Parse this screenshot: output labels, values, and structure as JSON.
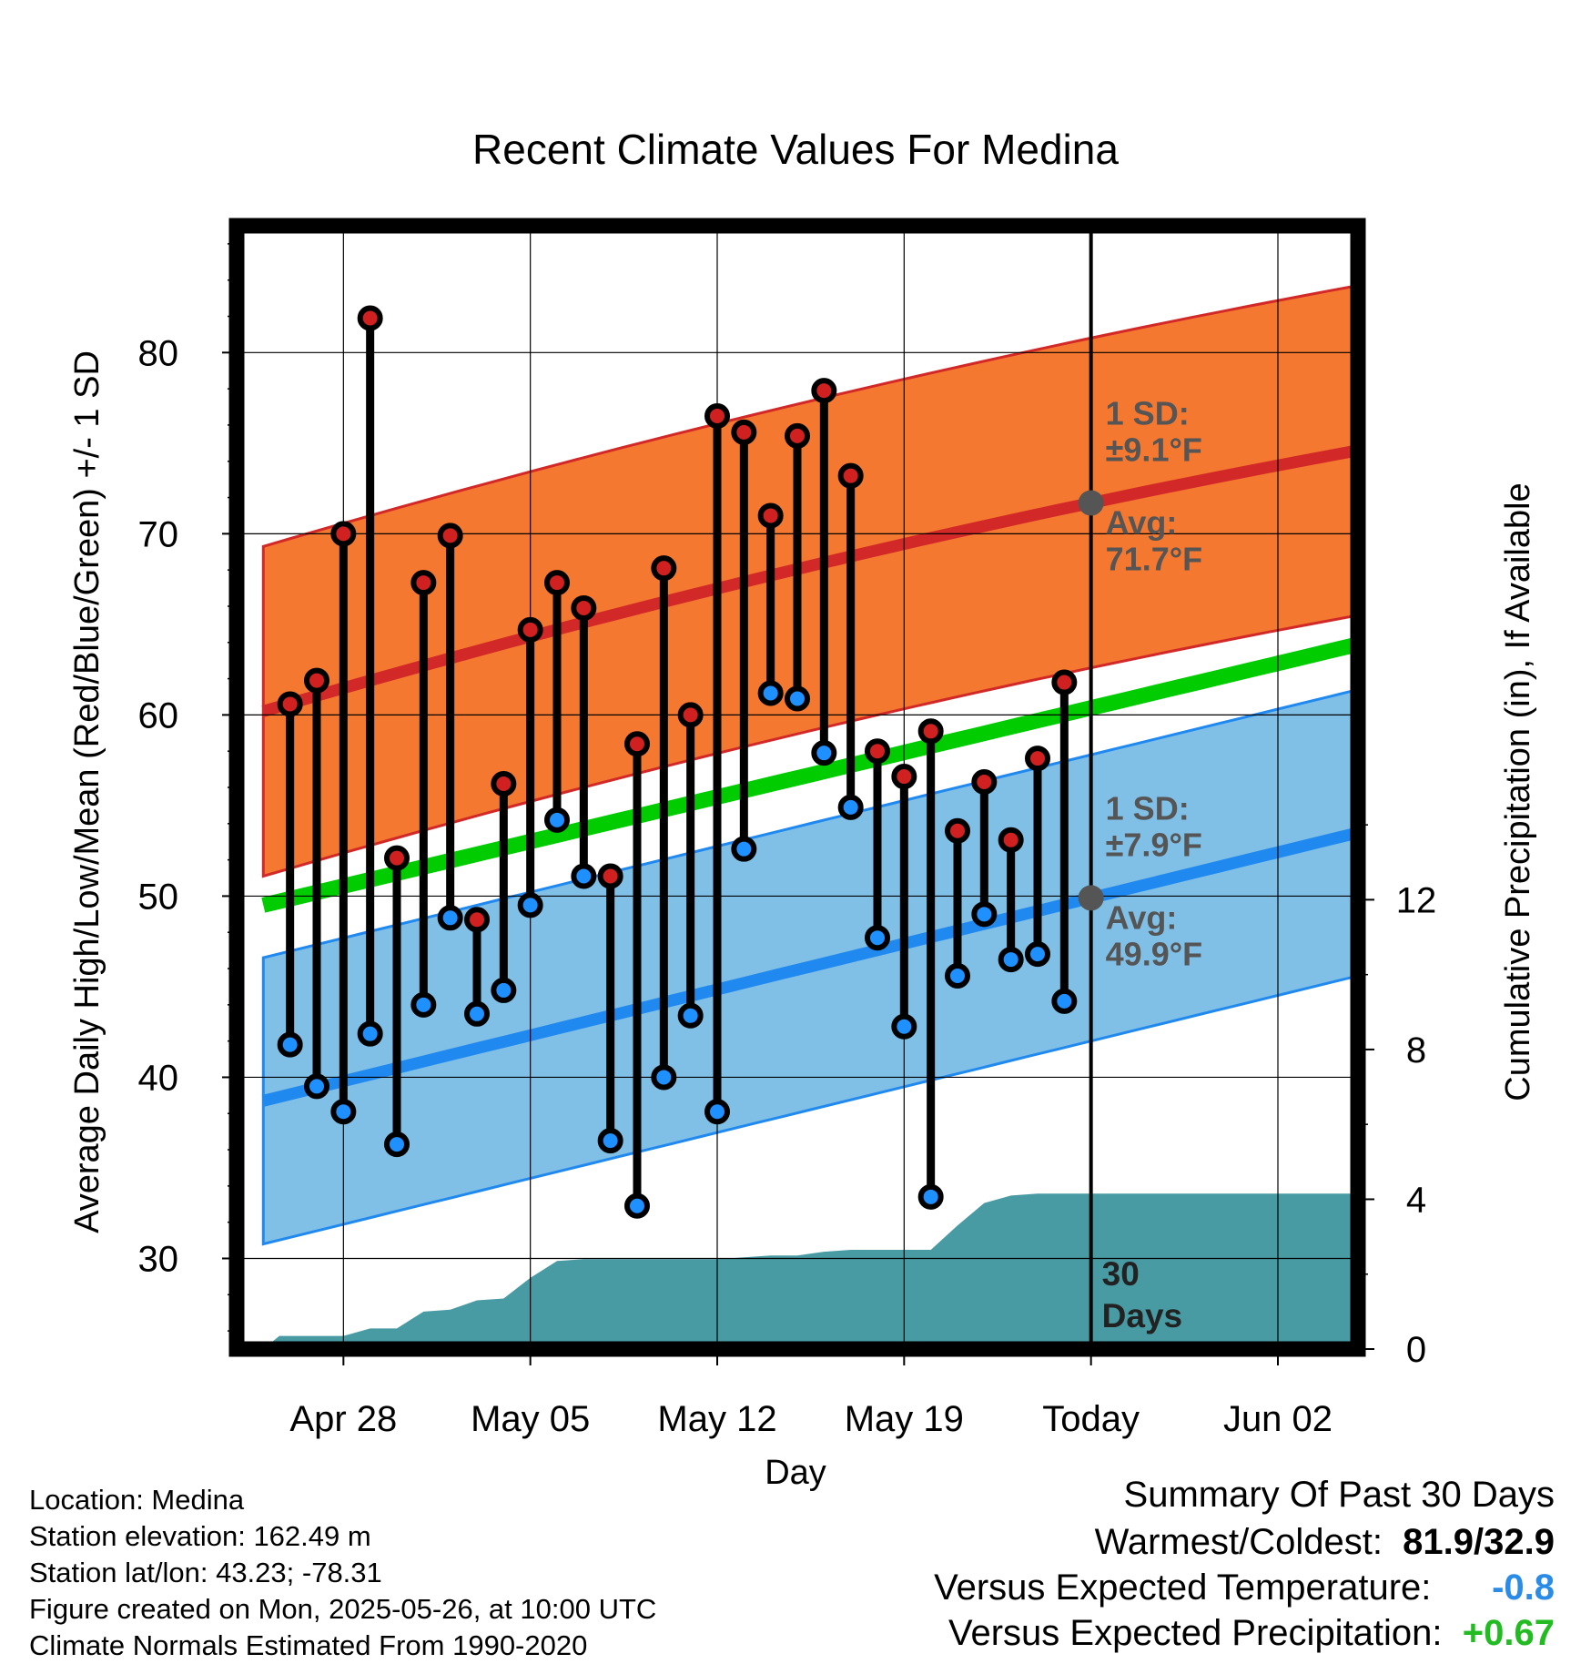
{
  "chart_data": {
    "type": "line",
    "title": "Recent Climate Values For Medina",
    "xlabel": "Day",
    "ylabel": "Average Daily High/Low/Mean (Red/Blue/Green) +/- 1 SD",
    "y2label": "Cumulative Precipitation (in), If Available",
    "ylim": [
      25,
      87
    ],
    "y2lim": [
      0,
      30
    ],
    "xlim": [
      "2025-04-24",
      "2025-06-05"
    ],
    "x_ticks": [
      {
        "date": "2025-04-28",
        "label": "Apr 28"
      },
      {
        "date": "2025-05-05",
        "label": "May 05"
      },
      {
        "date": "2025-05-12",
        "label": "May 12"
      },
      {
        "date": "2025-05-19",
        "label": "May 19"
      },
      {
        "date": "2025-05-26",
        "label": "Today"
      },
      {
        "date": "2025-06-02",
        "label": "Jun 02"
      }
    ],
    "y_ticks": [
      30,
      40,
      50,
      60,
      70,
      80
    ],
    "y2_ticks": [
      0,
      4,
      8,
      12
    ],
    "today": "2025-05-26",
    "today_label": "30\nDays",
    "normals": {
      "x": [
        "2025-04-25",
        "2025-06-05"
      ],
      "high_mean": [
        60.2,
        74.6
      ],
      "high_sd": 9.1,
      "low_mean": [
        38.7,
        53.5
      ],
      "low_sd": 7.9,
      "mean": [
        49.5,
        63.9
      ]
    },
    "annotations": {
      "high_sd_label": "1 SD:",
      "high_sd_value": "±9.1°F",
      "high_avg_label": "Avg:",
      "high_avg_value": "71.7°F",
      "high_avg": 71.7,
      "low_sd_label": "1 SD:",
      "low_sd_value": "±7.9°F",
      "low_avg_label": "Avg:",
      "low_avg_value": "49.9°F",
      "low_avg": 49.9
    },
    "daily": {
      "x": [
        "2025-04-26",
        "2025-04-27",
        "2025-04-28",
        "2025-04-29",
        "2025-04-30",
        "2025-05-01",
        "2025-05-02",
        "2025-05-03",
        "2025-05-04",
        "2025-05-05",
        "2025-05-06",
        "2025-05-07",
        "2025-05-08",
        "2025-05-09",
        "2025-05-10",
        "2025-05-11",
        "2025-05-12",
        "2025-05-13",
        "2025-05-14",
        "2025-05-15",
        "2025-05-16",
        "2025-05-17",
        "2025-05-18",
        "2025-05-19",
        "2025-05-20",
        "2025-05-21",
        "2025-05-22",
        "2025-05-23",
        "2025-05-24",
        "2025-05-25"
      ],
      "high": [
        60.6,
        61.9,
        70.0,
        81.9,
        52.1,
        67.3,
        69.9,
        48.7,
        56.2,
        64.7,
        67.3,
        65.9,
        51.1,
        58.4,
        68.1,
        60.0,
        76.5,
        75.6,
        71.0,
        75.4,
        77.9,
        73.2,
        58.0,
        56.6,
        59.1,
        53.6,
        56.3,
        53.1,
        57.6,
        61.8
      ],
      "low": [
        41.8,
        39.5,
        38.1,
        42.4,
        36.3,
        44.0,
        48.8,
        43.5,
        44.8,
        49.5,
        54.2,
        51.1,
        36.5,
        32.9,
        40.0,
        43.4,
        38.1,
        52.6,
        61.2,
        60.9,
        57.9,
        54.9,
        47.7,
        42.8,
        33.4,
        45.6,
        49.0,
        46.5,
        46.8,
        44.2
      ]
    },
    "precip": {
      "x": [
        "2025-04-25",
        "2025-04-25.6",
        "2025-04-28",
        "2025-04-29",
        "2025-04-30",
        "2025-05-01",
        "2025-05-02",
        "2025-05-03",
        "2025-05-04",
        "2025-05-05",
        "2025-05-06",
        "2025-05-07",
        "2025-05-12",
        "2025-05-14",
        "2025-05-15",
        "2025-05-16",
        "2025-05-17",
        "2025-05-20",
        "2025-05-21",
        "2025-05-22",
        "2025-05-23",
        "2025-05-24",
        "2025-06-05"
      ],
      "cumulative": [
        0.0,
        0.35,
        0.35,
        0.55,
        0.55,
        1.0,
        1.05,
        1.3,
        1.35,
        1.9,
        2.35,
        2.4,
        2.4,
        2.5,
        2.5,
        2.6,
        2.65,
        2.65,
        3.3,
        3.9,
        4.1,
        4.15,
        4.15
      ]
    },
    "colors": {
      "high_band": "#f47830",
      "high_line": "#d22828",
      "low_band": "#80bfe6",
      "low_line": "#2089f0",
      "mean_line": "#00cc00",
      "precip_fill": "#489ba3",
      "high_marker": "#d02020",
      "low_marker": "#1e90ff",
      "annotation_text": "#555555"
    }
  },
  "info": {
    "location": "Location: Medina",
    "elevation": "Station elevation: 162.49 m",
    "latlon": "Station lat/lon: 43.23; -78.31",
    "created": "Figure created on Mon, 2025-05-26, at 10:00 UTC",
    "normals": "Climate Normals Estimated From 1990-2020"
  },
  "summary": {
    "title": "Summary Of Past 30 Days",
    "warm_cold_label": "Warmest/Coldest:",
    "warm_cold_value": "81.9/32.9",
    "temp_label": "Versus Expected Temperature:",
    "temp_value": "-0.8",
    "temp_color": "#2b8ce8",
    "precip_label": "Versus Expected Precipitation:",
    "precip_value": "+0.67",
    "precip_color": "#22bb22"
  }
}
